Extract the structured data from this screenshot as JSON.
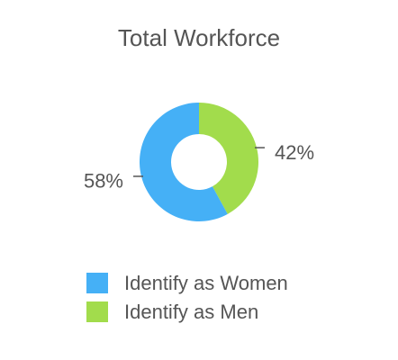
{
  "chart_data": {
    "type": "donut",
    "title": "Total Workforce",
    "categories": [
      "Identify as Women",
      "Identify as Men"
    ],
    "values": [
      58,
      42
    ],
    "value_labels": [
      "58%",
      "42%"
    ],
    "colors": [
      "#45b0f6",
      "#a2dc4c"
    ],
    "legend": "bottom"
  }
}
